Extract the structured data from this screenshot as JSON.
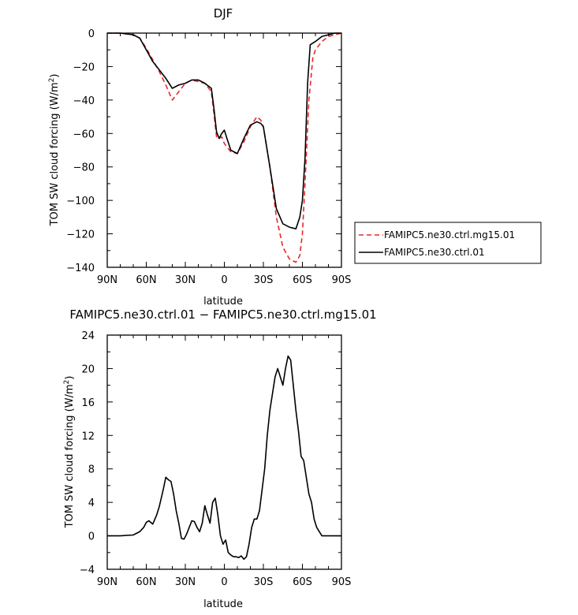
{
  "chart_data": [
    {
      "type": "line",
      "title": "DJF",
      "xlabel": "latitude",
      "ylabel": "TOM SW cloud forcing (W/m²)",
      "ylabel_main": "TOM SW cloud forcing (W/m",
      "ylabel_sup": "2",
      "ylabel_end": ")",
      "xlim": [
        90,
        -90
      ],
      "ylim": [
        -140,
        0
      ],
      "x_ticks": [
        90,
        60,
        30,
        0,
        -30,
        -60,
        -90
      ],
      "x_tick_labels": [
        "90N",
        "60N",
        "30N",
        "0",
        "30S",
        "60S",
        "90S"
      ],
      "y_ticks": [
        0,
        -20,
        -40,
        -60,
        -80,
        -100,
        -120,
        -140
      ],
      "y_tick_labels": [
        "0",
        "−20",
        "−40",
        "−60",
        "−80",
        "−100",
        "−120",
        "−140"
      ],
      "legend": "right",
      "grid": false,
      "series": [
        {
          "name": "FAMIPC5.ne30.ctrl.mg15.01",
          "color": "#e8262b",
          "dash": "dashed",
          "x": [
            90,
            80,
            70,
            65,
            60,
            55,
            50,
            45,
            40,
            35,
            30,
            25,
            20,
            15,
            10,
            8,
            6,
            4,
            2,
            0,
            -2,
            -5,
            -10,
            -15,
            -20,
            -25,
            -28,
            -30,
            -35,
            -40,
            -45,
            -50,
            -55,
            -58,
            -60,
            -62,
            -65,
            -68,
            -70,
            -75,
            -80,
            -85,
            -90
          ],
          "y": [
            0,
            0,
            -1,
            -3,
            -9,
            -16,
            -23,
            -31,
            -40,
            -35,
            -30,
            -28,
            -29,
            -30,
            -35,
            -48,
            -62,
            -63,
            -62,
            -66,
            -68,
            -71,
            -72,
            -65,
            -56,
            -50,
            -52,
            -56,
            -80,
            -110,
            -128,
            -135,
            -137,
            -133,
            -120,
            -90,
            -40,
            -15,
            -10,
            -5,
            -2,
            -1,
            0
          ]
        },
        {
          "name": "FAMIPC5.ne30.ctrl.01",
          "color": "#000000",
          "dash": "solid",
          "x": [
            90,
            80,
            70,
            65,
            60,
            55,
            50,
            45,
            40,
            35,
            30,
            25,
            20,
            15,
            10,
            8,
            6,
            4,
            2,
            0,
            -2,
            -5,
            -10,
            -15,
            -20,
            -25,
            -28,
            -30,
            -35,
            -40,
            -45,
            -50,
            -55,
            -58,
            -60,
            -62,
            -64,
            -66,
            -70,
            -75,
            -80,
            -85,
            -90
          ],
          "y": [
            0,
            0,
            -1,
            -3,
            -10,
            -17,
            -22,
            -27,
            -33,
            -31,
            -30,
            -28,
            -28,
            -30,
            -33,
            -45,
            -59,
            -63,
            -60,
            -58,
            -63,
            -70,
            -72,
            -63,
            -55,
            -53,
            -54,
            -56,
            -80,
            -105,
            -114,
            -116,
            -117,
            -110,
            -100,
            -75,
            -30,
            -7,
            -5,
            -2,
            -1,
            0,
            0
          ]
        }
      ]
    },
    {
      "type": "line",
      "title": "FAMIPC5.ne30.ctrl.01 − FAMIPC5.ne30.ctrl.mg15.01",
      "xlabel": "latitude",
      "ylabel": "TOM SW cloud forcing (W/m²)",
      "ylabel_main": "TOM SW cloud forcing (W/m",
      "ylabel_sup": "2",
      "ylabel_end": ")",
      "xlim": [
        90,
        -90
      ],
      "ylim": [
        -4,
        24
      ],
      "x_ticks": [
        90,
        60,
        30,
        0,
        -30,
        -60,
        -90
      ],
      "x_tick_labels": [
        "90N",
        "60N",
        "30N",
        "0",
        "30S",
        "60S",
        "90S"
      ],
      "y_ticks": [
        24,
        20,
        16,
        12,
        8,
        4,
        0,
        -4
      ],
      "y_tick_labels": [
        "24",
        "20",
        "16",
        "12",
        "8",
        "4",
        "0",
        "−4"
      ],
      "grid": false,
      "series": [
        {
          "color": "#000000",
          "x": [
            90,
            80,
            70,
            65,
            62,
            60,
            58,
            55,
            52,
            50,
            47,
            45,
            43,
            41,
            39,
            37,
            35,
            33,
            31,
            29,
            27,
            25,
            23,
            21,
            19,
            17,
            15,
            13,
            11,
            9,
            7,
            5,
            3,
            1,
            -1,
            -3,
            -5,
            -7,
            -9,
            -11,
            -13,
            -15,
            -17,
            -19,
            -21,
            -23,
            -25,
            -27,
            -29,
            -31,
            -33,
            -35,
            -37,
            -39,
            -41,
            -43,
            -45,
            -47,
            -49,
            -51,
            -53,
            -55,
            -57,
            -59,
            -61,
            -63,
            -65,
            -67,
            -69,
            -71,
            -73,
            -75,
            -77,
            -79,
            -81,
            -83,
            -85,
            -87,
            -90
          ],
          "y": [
            0,
            0,
            0.1,
            0.5,
            1,
            1.6,
            1.8,
            1.4,
            2.5,
            3.5,
            5.5,
            7,
            6.7,
            6.5,
            5,
            3,
            1.5,
            -0.3,
            -0.4,
            0.2,
            1,
            1.8,
            1.7,
            1,
            0.5,
            1.5,
            3.6,
            2.5,
            1.5,
            4,
            4.5,
            2.5,
            0,
            -1,
            -0.5,
            -2,
            -2.3,
            -2.5,
            -2.5,
            -2.6,
            -2.4,
            -2.8,
            -2.5,
            -1,
            1,
            2,
            2,
            3,
            5.5,
            8,
            12,
            15,
            17,
            19,
            20,
            19,
            18,
            20,
            21.5,
            21,
            18,
            15,
            12.5,
            9.5,
            9,
            7,
            5,
            4,
            2,
            1,
            0.5,
            0,
            0,
            0,
            0,
            0,
            0,
            0,
            0
          ]
        }
      ]
    }
  ]
}
